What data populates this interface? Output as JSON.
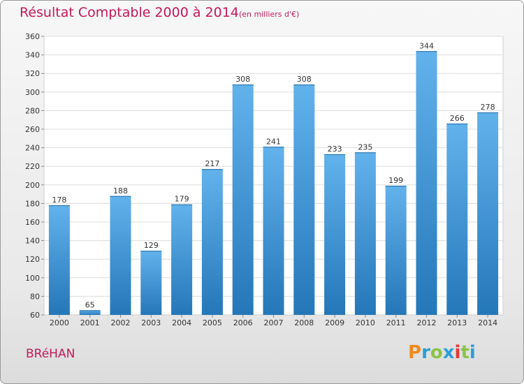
{
  "header": {
    "title": "Résultat Comptable 2000 à 2014",
    "subtitle": "(en milliers d'€)"
  },
  "footer": {
    "commune": "BRéHAN",
    "logo": "Proxiti",
    "logo_colors": [
      "#f08a1c",
      "#2a9fd8",
      "#8bc34a",
      "#2a9fd8",
      "#e53935",
      "#8bc34a",
      "#2a9fd8"
    ]
  },
  "colors": {
    "bar_top": "#62b2ec",
    "bar_bottom": "#2477b8",
    "title": "#c2185b",
    "grid": "#dddddd"
  },
  "chart_data": {
    "type": "bar",
    "title": "Résultat Comptable 2000 à 2014",
    "subtitle": "(en milliers d'€)",
    "categories": [
      "2000",
      "2001",
      "2002",
      "2003",
      "2004",
      "2005",
      "2006",
      "2007",
      "2008",
      "2009",
      "2010",
      "2011",
      "2012",
      "2013",
      "2014"
    ],
    "values": [
      178,
      65,
      188,
      129,
      179,
      217,
      308,
      241,
      308,
      233,
      235,
      199,
      344,
      266,
      278
    ],
    "ylim": [
      60,
      360
    ],
    "yticks": [
      60,
      80,
      100,
      120,
      140,
      160,
      180,
      200,
      220,
      240,
      260,
      280,
      300,
      320,
      340,
      360
    ],
    "grid": true,
    "data_labels": true
  }
}
